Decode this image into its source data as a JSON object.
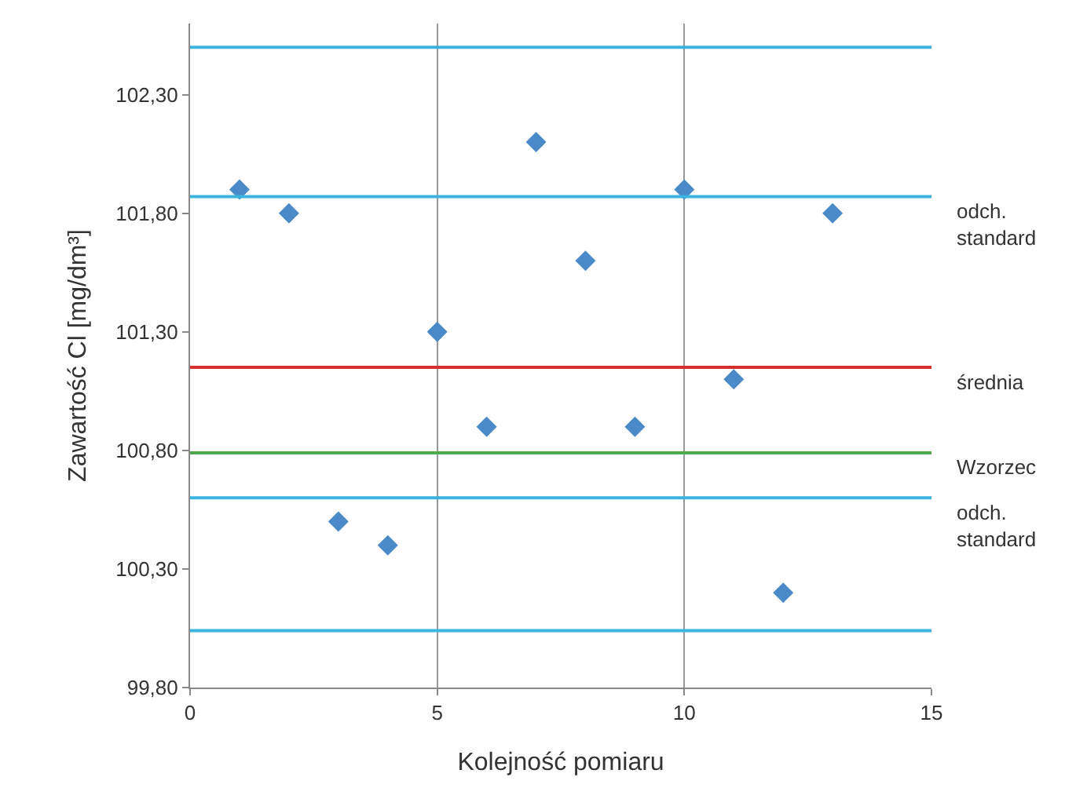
{
  "chart_data": {
    "type": "scatter",
    "xlabel": "Kolejność pomiaru",
    "ylabel": "Zawartość Cl [mg/dm³]",
    "x": [
      1,
      2,
      3,
      4,
      5,
      6,
      7,
      8,
      9,
      10,
      11,
      12,
      13
    ],
    "values": [
      101.9,
      101.8,
      100.5,
      100.4,
      101.3,
      100.9,
      102.1,
      101.6,
      100.9,
      101.9,
      101.1,
      100.2,
      101.8
    ],
    "color": "#4a8ac8",
    "marker": "diamond",
    "xlim": [
      0,
      15
    ],
    "xticks": [
      0,
      5,
      10,
      15
    ],
    "ylim": [
      99.8,
      102.6
    ],
    "yticks": [
      {
        "value": 99.8,
        "label": "99,80"
      },
      {
        "value": 100.3,
        "label": "100,30"
      },
      {
        "value": 100.8,
        "label": "100,80"
      },
      {
        "value": 101.3,
        "label": "101,30"
      },
      {
        "value": 101.8,
        "label": "101,80"
      },
      {
        "value": 102.3,
        "label": "102,30"
      }
    ],
    "grid": "x",
    "ref_lines": [
      {
        "axis": "y",
        "value": 102.5,
        "color": "#3cb4e0"
      },
      {
        "axis": "y",
        "value": 101.87,
        "label": "odch. standard",
        "color": "#3cb4e0"
      },
      {
        "axis": "y",
        "value": 101.15,
        "label": "średnia",
        "color": "#d62f2f"
      },
      {
        "axis": "y",
        "value": 100.79,
        "label": "Wzorzec",
        "color": "#4caa4c"
      },
      {
        "axis": "y",
        "value": 100.6,
        "label": "odch. standard",
        "color": "#3cb4e0"
      },
      {
        "axis": "y",
        "value": 100.04,
        "color": "#3cb4e0"
      }
    ]
  }
}
